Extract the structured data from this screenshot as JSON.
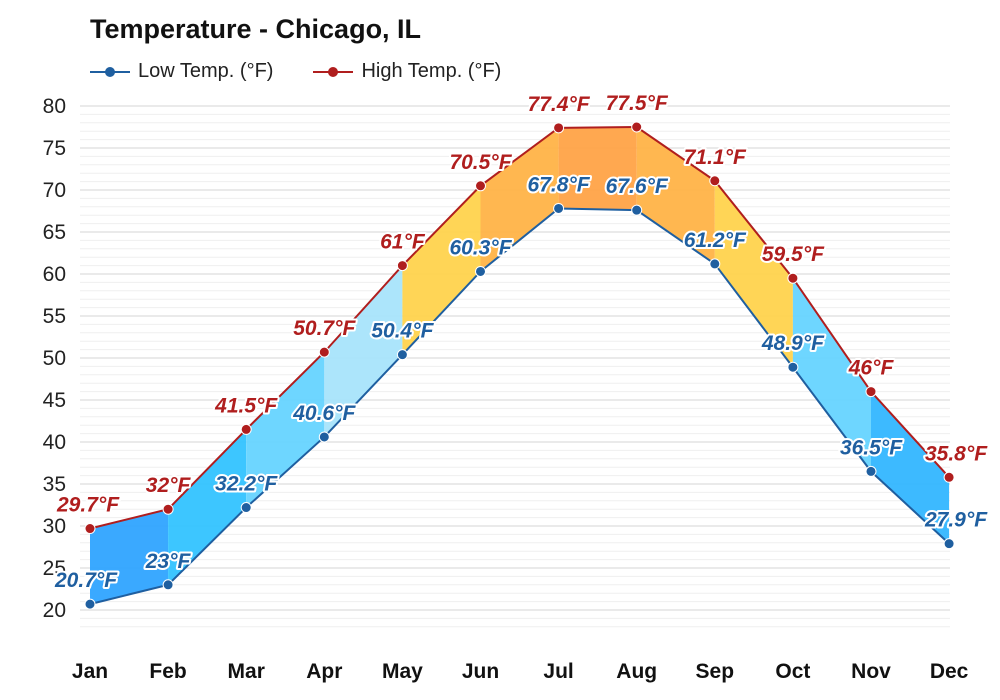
{
  "title": "Temperature - Chicago, IL",
  "colors": {
    "low": "#1f5fa0",
    "high": "#b01e1e",
    "grid": "#dddddd"
  },
  "chart_data": {
    "type": "area",
    "title": "Temperature - Chicago, IL",
    "xlabel": "",
    "ylabel": "",
    "categories": [
      "Jan",
      "Feb",
      "Mar",
      "Apr",
      "May",
      "Jun",
      "Jul",
      "Aug",
      "Sep",
      "Oct",
      "Nov",
      "Dec"
    ],
    "ylim": [
      20,
      80
    ],
    "yticks": [
      20,
      25,
      30,
      35,
      40,
      45,
      50,
      55,
      60,
      65,
      70,
      75,
      80
    ],
    "grid": true,
    "legend_position": "top-left",
    "series": [
      {
        "name": "Low Temp. (°F)",
        "values": [
          20.7,
          23,
          32.2,
          40.6,
          50.4,
          60.3,
          67.8,
          67.6,
          61.2,
          48.9,
          36.5,
          27.9
        ],
        "labels": [
          "20.7°F",
          "23°F",
          "32.2°F",
          "40.6°F",
          "50.4°F",
          "60.3°F",
          "67.8°F",
          "67.6°F",
          "61.2°F",
          "48.9°F",
          "36.5°F",
          "27.9°F"
        ]
      },
      {
        "name": "High Temp. (°F)",
        "values": [
          29.7,
          32,
          41.5,
          50.7,
          61,
          70.5,
          77.4,
          77.5,
          71.1,
          59.5,
          46,
          35.8
        ],
        "labels": [
          "29.7°F",
          "32°F",
          "41.5°F",
          "50.7°F",
          "61°F",
          "70.5°F",
          "77.4°F",
          "77.5°F",
          "71.1°F",
          "59.5°F",
          "46°F",
          "35.8°F"
        ]
      }
    ],
    "band_colors": [
      "#2fa4ff",
      "#33c3ff",
      "#66d4ff",
      "#a8e4fb",
      "#ffd34d",
      "#ffb347",
      "#ffa347",
      "#ffb347",
      "#ffd34d",
      "#66d4ff",
      "#33b6ff",
      "#2fa4ff"
    ]
  }
}
